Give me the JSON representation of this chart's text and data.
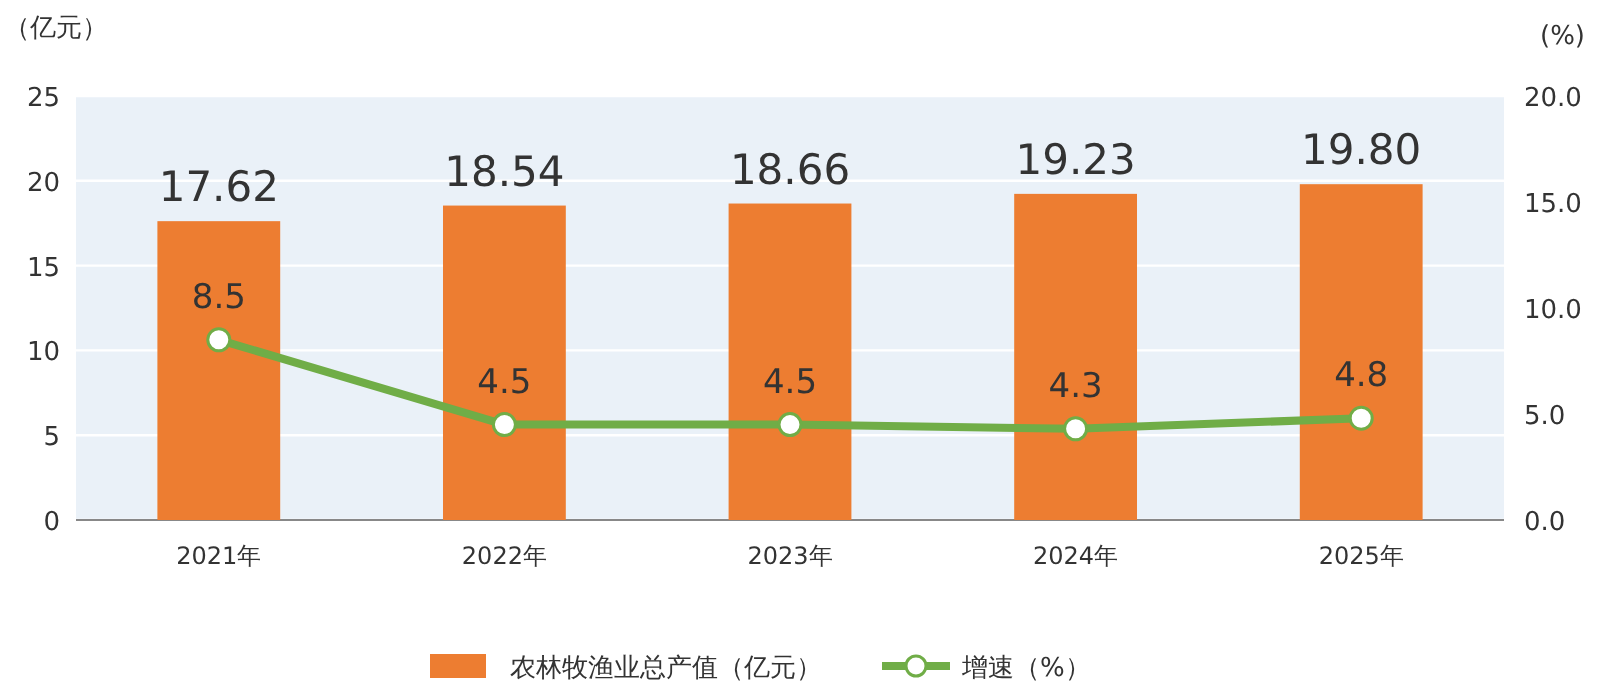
{
  "chart_data": {
    "type": "bar",
    "categories": [
      "2021年",
      "2022年",
      "2023年",
      "2024年",
      "2025年"
    ],
    "series": [
      {
        "name": "农林牧渔业总产值（亿元）",
        "color": "#ed7d31",
        "values": [
          17.62,
          18.54,
          18.66,
          19.23,
          19.8
        ],
        "value_labels": [
          "17.62",
          "18.54",
          "18.66",
          "19.23",
          "19.80"
        ]
      },
      {
        "name": "增速（%）",
        "type": "line",
        "axis": "y2",
        "color": "#70ad47",
        "marker": "circle",
        "values": [
          8.5,
          4.5,
          4.5,
          4.3,
          4.8
        ],
        "value_labels": [
          "8.5",
          "4.5",
          "4.5",
          "4.3",
          "4.8"
        ]
      }
    ],
    "ylabel": "（亿元）",
    "y2label": "(%)",
    "ylim": [
      0,
      25
    ],
    "yticks": [
      0,
      5,
      10,
      15,
      20,
      25
    ],
    "y2lim": [
      0,
      20
    ],
    "y2ticks": [
      {
        "value": 0,
        "label": "0.0"
      },
      {
        "value": 5,
        "label": "5.0"
      },
      {
        "value": 10,
        "label": "10.0"
      },
      {
        "value": 15,
        "label": "15.0"
      },
      {
        "value": 20,
        "label": "20.0"
      }
    ],
    "grid": "y",
    "legend": "bottom"
  }
}
